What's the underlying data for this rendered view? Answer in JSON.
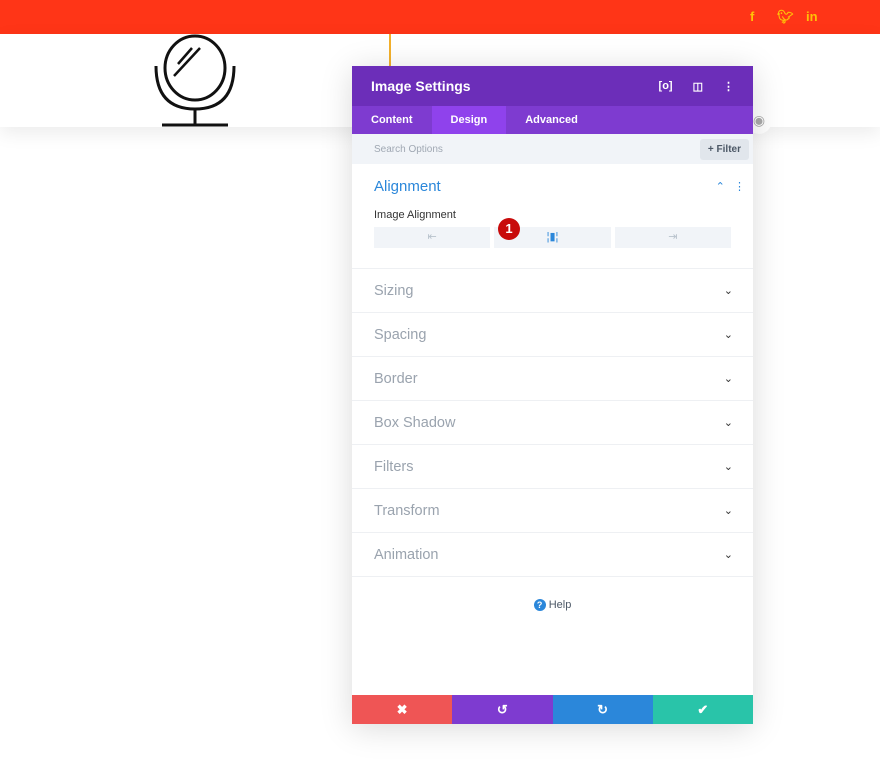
{
  "social": {
    "facebook": "f",
    "twitter": "t",
    "linkedin": "in"
  },
  "panel": {
    "title": "Image Settings",
    "tabs": [
      "Content",
      "Design",
      "Advanced"
    ],
    "search_placeholder": "Search Options",
    "filter_label": "+ Filter",
    "alignment": {
      "title": "Alignment",
      "field_label": "Image Alignment",
      "options": [
        "left",
        "center",
        "right"
      ],
      "selected": "center",
      "badge": "1"
    },
    "sections": [
      "Sizing",
      "Spacing",
      "Border",
      "Box Shadow",
      "Filters",
      "Transform",
      "Animation"
    ],
    "help_label": "Help"
  },
  "colors": {
    "topbar": "#ff3517",
    "header": "#6c2eb9",
    "tabs": "#7e3bd0",
    "accent": "#2b87da",
    "cancel": "#ef5555",
    "undo": "#7e3bd0",
    "redo": "#2b87da",
    "save": "#29c4a9"
  }
}
